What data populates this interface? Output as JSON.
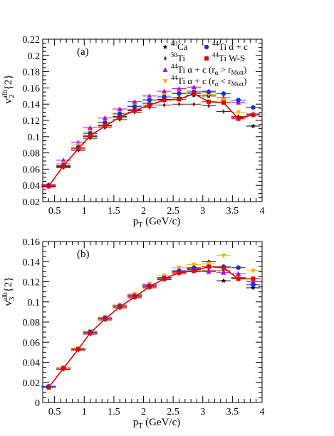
{
  "chart_data": [
    {
      "id": "a",
      "type": "line",
      "panel_label": "(a)",
      "xlabel": "p_T (GeV/c)",
      "ylabel": "v_2^{alb}{2}",
      "xlim": [
        0.3,
        4.0
      ],
      "ylim": [
        0.02,
        0.22
      ],
      "xticks": [
        0.5,
        1,
        1.5,
        2,
        2.5,
        3,
        3.5,
        4
      ],
      "xtick_labels": [
        "0.5",
        "1",
        "1.5",
        "2",
        "2.5",
        "3",
        "3.5",
        "4"
      ],
      "yticks": [
        0.02,
        0.04,
        0.06,
        0.08,
        0.1,
        0.12,
        0.14,
        0.16,
        0.18,
        0.2,
        0.22
      ],
      "ytick_labels": [
        "0.02",
        "0.04",
        "0.06",
        "0.08",
        "0.1",
        "0.12",
        "0.14",
        "0.16",
        "0.18",
        "0.2",
        "0.22"
      ],
      "grid": false,
      "legend_position": "top-right",
      "x": [
        0.4,
        0.65,
        0.9,
        1.1,
        1.35,
        1.6,
        1.85,
        2.1,
        2.35,
        2.6,
        2.85,
        3.1,
        3.35,
        3.6,
        3.85
      ],
      "series": [
        {
          "name": "40Ca",
          "legend": {
            "sup": "40",
            "text": "Ca"
          },
          "color": "#000000",
          "marker": "star",
          "values": [
            0.039,
            0.063,
            0.085,
            0.1,
            0.114,
            0.125,
            0.133,
            0.141,
            0.146,
            0.148,
            0.151,
            0.15,
            0.142,
            0.124,
            0.113
          ]
        },
        {
          "name": "50Ti",
          "legend": {
            "sup": "50",
            "text": "Ti"
          },
          "color": "#7a1010",
          "marker": "diamond",
          "values": [
            0.038,
            0.062,
            0.083,
            0.098,
            0.111,
            0.121,
            0.13,
            0.136,
            0.139,
            0.14,
            0.14,
            0.138,
            0.131,
            0.125,
            0.127
          ]
        },
        {
          "name": "44Ti α + c (rα > rMott)",
          "legend": {
            "sup": "44",
            "text": "Ti α + c (r",
            "sub": "α",
            "text2": " > r",
            "sub2": "Mott",
            "text3": ")"
          },
          "color": "#b000e0",
          "marker": "triangle-up",
          "values": [
            0.041,
            0.071,
            0.093,
            0.111,
            0.123,
            0.134,
            0.143,
            0.15,
            0.156,
            0.159,
            0.161,
            0.156,
            0.148,
            0.142,
            0.128
          ]
        },
        {
          "name": "44Ti α + c (rα < rMott)",
          "legend": {
            "sup": "44",
            "text": "Ti α + c (r",
            "sub": "α",
            "text2": " < r",
            "sub2": "Mott",
            "text3": ")"
          },
          "color": "#f2b600",
          "marker": "triangle-down",
          "values": [
            0.04,
            0.067,
            0.09,
            0.106,
            0.118,
            0.129,
            0.138,
            0.146,
            0.151,
            0.154,
            0.156,
            0.152,
            0.145,
            0.13,
            0.126
          ]
        },
        {
          "name": "44Ti α + c",
          "legend": {
            "sup": "44",
            "text": "Ti α + c"
          },
          "color": "#1030e0",
          "marker": "circle",
          "values": [
            0.04,
            0.065,
            0.087,
            0.104,
            0.117,
            0.128,
            0.137,
            0.145,
            0.149,
            0.153,
            0.155,
            0.155,
            0.153,
            0.145,
            0.136
          ]
        },
        {
          "name": "44Ti W-S",
          "legend": {
            "sup": "44",
            "text": "Ti W-S"
          },
          "color": "#e00000",
          "marker": "square",
          "line": true,
          "values": [
            0.039,
            0.064,
            0.085,
            0.101,
            0.113,
            0.124,
            0.132,
            0.139,
            0.145,
            0.146,
            0.153,
            0.143,
            0.142,
            0.122,
            0.127
          ]
        }
      ]
    },
    {
      "id": "b",
      "type": "line",
      "panel_label": "(b)",
      "xlabel": "p_T (GeV/c)",
      "ylabel": "v_3^{alb}{2}",
      "xlim": [
        0.3,
        4.0
      ],
      "ylim": [
        0.0,
        0.16
      ],
      "xticks": [
        0.5,
        1,
        1.5,
        2,
        2.5,
        3,
        3.5,
        4
      ],
      "xtick_labels": [
        "0.5",
        "1",
        "1.5",
        "2",
        "2.5",
        "3",
        "3.5",
        "4"
      ],
      "yticks": [
        0,
        0.02,
        0.04,
        0.06,
        0.08,
        0.1,
        0.12,
        0.14,
        0.16
      ],
      "ytick_labels": [
        "0",
        "0.02",
        "0.04",
        "0.06",
        "0.08",
        "0.1",
        "0.12",
        "0.14",
        "0.16"
      ],
      "grid": false,
      "x": [
        0.4,
        0.65,
        0.9,
        1.1,
        1.35,
        1.6,
        1.85,
        2.1,
        2.35,
        2.6,
        2.85,
        3.1,
        3.35,
        3.6,
        3.85
      ],
      "series": [
        {
          "name": "40Ca",
          "color": "#000000",
          "marker": "star",
          "values": [
            0.016,
            0.034,
            0.053,
            0.07,
            0.084,
            0.096,
            0.106,
            0.116,
            0.124,
            0.13,
            0.133,
            0.14,
            0.121,
            0.124,
            0.114
          ]
        },
        {
          "name": "50Ti",
          "color": "#7a1010",
          "marker": "diamond",
          "values": [
            0.015,
            0.033,
            0.052,
            0.068,
            0.082,
            0.094,
            0.104,
            0.114,
            0.122,
            0.128,
            0.13,
            0.131,
            0.131,
            0.124,
            0.123
          ]
        },
        {
          "name": "44Ti α + c (rα > rMott)",
          "color": "#b000e0",
          "marker": "triangle-up",
          "values": [
            0.016,
            0.034,
            0.054,
            0.07,
            0.085,
            0.097,
            0.107,
            0.117,
            0.124,
            0.13,
            0.132,
            0.13,
            0.129,
            0.128,
            0.12
          ]
        },
        {
          "name": "44Ti α + c (rα < rMott)",
          "color": "#f2b600",
          "marker": "triangle-down",
          "values": [
            0.016,
            0.035,
            0.054,
            0.071,
            0.085,
            0.097,
            0.108,
            0.118,
            0.126,
            0.134,
            0.137,
            0.138,
            0.146,
            0.134,
            0.131
          ]
        },
        {
          "name": "44Ti α + c",
          "color": "#1030e0",
          "marker": "circle",
          "values": [
            0.016,
            0.034,
            0.053,
            0.07,
            0.084,
            0.096,
            0.106,
            0.116,
            0.124,
            0.131,
            0.134,
            0.135,
            0.135,
            0.134,
            0.117
          ]
        },
        {
          "name": "44Ti W-S",
          "color": "#e00000",
          "marker": "square",
          "line": true,
          "values": [
            0.015,
            0.034,
            0.053,
            0.069,
            0.083,
            0.095,
            0.105,
            0.115,
            0.123,
            0.129,
            0.131,
            0.135,
            0.134,
            0.123,
            0.123
          ]
        }
      ]
    }
  ]
}
